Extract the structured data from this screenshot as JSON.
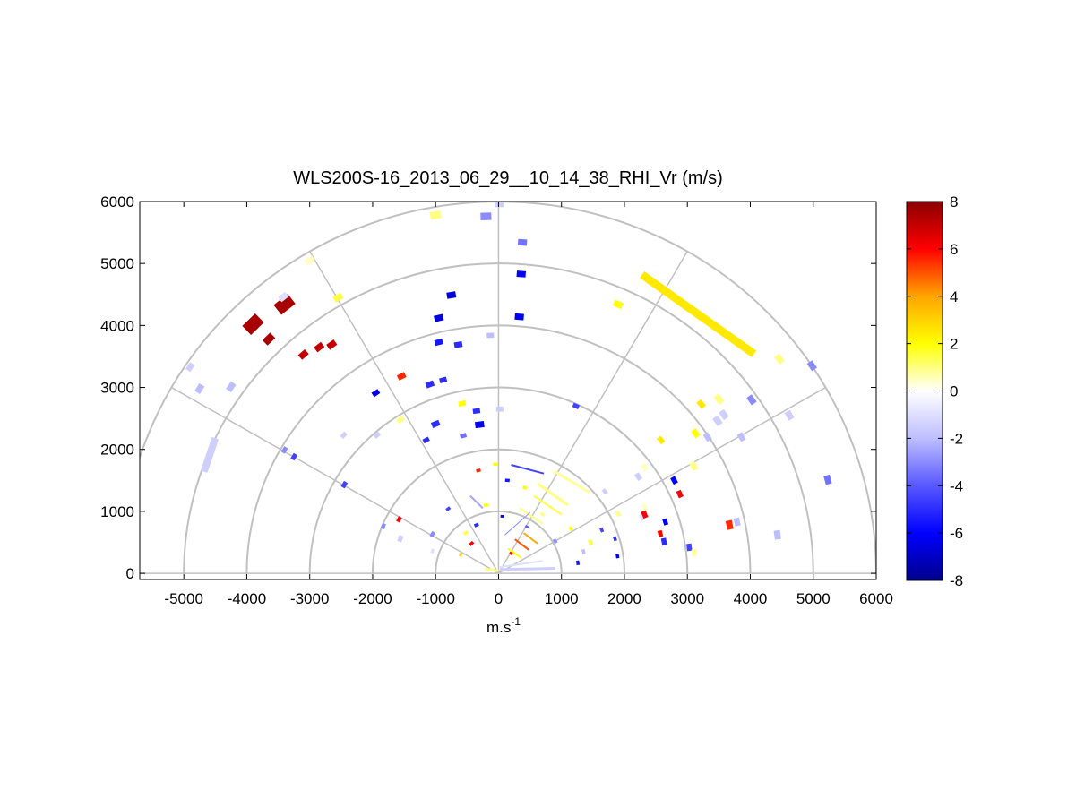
{
  "chart_data": {
    "type": "scatter",
    "title": "WLS200S-16_2013_06_29__10_14_38_RHI_Vr (m/s)",
    "xlabel_main": "m.s",
    "xlabel_superscript": "-1",
    "ylabel": "",
    "xlim": [
      -5700,
      6000
    ],
    "ylim": [
      -100,
      6000
    ],
    "xticks": [
      -5000,
      -4000,
      -3000,
      -2000,
      -1000,
      0,
      1000,
      2000,
      3000,
      4000,
      5000,
      6000
    ],
    "yticks": [
      0,
      1000,
      2000,
      3000,
      4000,
      5000,
      6000
    ],
    "polar_grid": {
      "range_rings": [
        1000,
        2000,
        3000,
        4000,
        5000,
        6000
      ],
      "spokes_deg": [
        0,
        30,
        60,
        90,
        120,
        150,
        180
      ]
    },
    "colorbar": {
      "label_ticks": [
        8,
        6,
        4,
        2,
        0,
        -2,
        -4,
        -6,
        -8
      ],
      "range": [
        -8,
        8
      ],
      "colormap_stops": [
        "#00008b",
        "#0000ff",
        "#5858ff",
        "#bebeff",
        "#ffffff",
        "#ffff00",
        "#ffa500",
        "#ff0000",
        "#8b0000"
      ]
    },
    "segments": [
      {
        "x1": 2280,
        "y1": 4820,
        "x2": 4060,
        "y2": 3540,
        "v": 2.5,
        "w": 9
      },
      {
        "x1": -4500,
        "y1": 2180,
        "x2": -4680,
        "y2": 1640,
        "v": -1.5,
        "w": 8
      },
      {
        "x1": 880,
        "y1": 1650,
        "x2": 1450,
        "y2": 1300,
        "v": 0.8,
        "w": 3
      },
      {
        "x1": 620,
        "y1": 1450,
        "x2": 1100,
        "y2": 1100,
        "v": 1.0,
        "w": 3
      },
      {
        "x1": 560,
        "y1": 1250,
        "x2": 1000,
        "y2": 950,
        "v": 1.5,
        "w": 2
      },
      {
        "x1": 340,
        "y1": 1050,
        "x2": 700,
        "y2": 800,
        "v": 1.0,
        "w": 2
      },
      {
        "x1": 400,
        "y1": 650,
        "x2": 620,
        "y2": 480,
        "v": 4.0,
        "w": 2
      },
      {
        "x1": 260,
        "y1": 550,
        "x2": 480,
        "y2": 380,
        "v": 5.0,
        "w": 2
      },
      {
        "x1": 150,
        "y1": 400,
        "x2": 360,
        "y2": 250,
        "v": 2.0,
        "w": 2
      },
      {
        "x1": 20,
        "y1": 60,
        "x2": 900,
        "y2": 80,
        "v": -1.5,
        "w": 3
      },
      {
        "x1": 20,
        "y1": 100,
        "x2": 700,
        "y2": 200,
        "v": -1.0,
        "w": 2
      },
      {
        "x1": 0,
        "y1": 40,
        "x2": -220,
        "y2": 70,
        "v": 1.0,
        "w": 3
      },
      {
        "x1": 200,
        "y1": 1750,
        "x2": 720,
        "y2": 1610,
        "v": -4.5,
        "w": 2
      },
      {
        "x1": -450,
        "y1": 1250,
        "x2": -250,
        "y2": 1050,
        "v": -2.5,
        "w": 2
      },
      {
        "x1": 500,
        "y1": 980,
        "x2": 100,
        "y2": 620,
        "v": -3.0,
        "w": 1
      }
    ],
    "points": [
      {
        "x": -3900,
        "y": 4020,
        "v": 7.5,
        "s": 20
      },
      {
        "x": -3400,
        "y": 4340,
        "v": 7.5,
        "s": 20
      },
      {
        "x": -3420,
        "y": 4460,
        "v": -1.0,
        "s": 10
      },
      {
        "x": -3650,
        "y": 3780,
        "v": 7.5,
        "s": 12
      },
      {
        "x": -3100,
        "y": 3530,
        "v": 7.0,
        "s": 10
      },
      {
        "x": -2850,
        "y": 3650,
        "v": 7.0,
        "s": 10
      },
      {
        "x": -2650,
        "y": 3690,
        "v": 7.0,
        "s": 10
      },
      {
        "x": -2550,
        "y": 4450,
        "v": 1.5,
        "s": 10
      },
      {
        "x": -3000,
        "y": 5050,
        "v": 0.5,
        "s": 10
      },
      {
        "x": -4900,
        "y": 3330,
        "v": -1.5,
        "s": 9
      },
      {
        "x": -4750,
        "y": 2980,
        "v": -2.0,
        "s": 10
      },
      {
        "x": -4250,
        "y": 3010,
        "v": -2.0,
        "s": 10
      },
      {
        "x": -3400,
        "y": 1990,
        "v": -3.0,
        "s": 7
      },
      {
        "x": -3250,
        "y": 1880,
        "v": -4.5,
        "s": 7
      },
      {
        "x": -2450,
        "y": 1430,
        "v": -4.5,
        "s": 7
      },
      {
        "x": -2460,
        "y": 2230,
        "v": -1.5,
        "s": 7
      },
      {
        "x": -1930,
        "y": 2230,
        "v": -1.5,
        "s": 7
      },
      {
        "x": -1950,
        "y": 2910,
        "v": -6.5,
        "s": 8
      },
      {
        "x": -1540,
        "y": 3180,
        "v": 5.5,
        "s": 9
      },
      {
        "x": -1560,
        "y": 2480,
        "v": 1.0,
        "s": 8
      },
      {
        "x": -1090,
        "y": 3050,
        "v": -5.0,
        "s": 9
      },
      {
        "x": -880,
        "y": 3120,
        "v": -5.0,
        "s": 8
      },
      {
        "x": -950,
        "y": 4120,
        "v": -6.5,
        "s": 10
      },
      {
        "x": -750,
        "y": 4490,
        "v": -6.5,
        "s": 10
      },
      {
        "x": -950,
        "y": 3730,
        "v": -5.5,
        "s": 9
      },
      {
        "x": -640,
        "y": 3690,
        "v": -5.0,
        "s": 9
      },
      {
        "x": -1000,
        "y": 5780,
        "v": 1.0,
        "s": 12
      },
      {
        "x": -200,
        "y": 5760,
        "v": -3.0,
        "s": 12
      },
      {
        "x": 10,
        "y": 5960,
        "v": -1.5,
        "s": 10
      },
      {
        "x": 380,
        "y": 5340,
        "v": -3.5,
        "s": 10
      },
      {
        "x": 360,
        "y": 4830,
        "v": -6.0,
        "s": 10
      },
      {
        "x": 330,
        "y": 4140,
        "v": -6.0,
        "s": 10
      },
      {
        "x": -130,
        "y": 3840,
        "v": -2.0,
        "s": 8
      },
      {
        "x": -1000,
        "y": 2410,
        "v": -5.0,
        "s": 9
      },
      {
        "x": -350,
        "y": 2620,
        "v": -5.0,
        "s": 8
      },
      {
        "x": -300,
        "y": 2400,
        "v": -6.0,
        "s": 10
      },
      {
        "x": -560,
        "y": 2220,
        "v": -3.5,
        "s": 7
      },
      {
        "x": -1150,
        "y": 2150,
        "v": -5.0,
        "s": 7
      },
      {
        "x": -580,
        "y": 2740,
        "v": 2.0,
        "s": 8
      },
      {
        "x": 20,
        "y": 2650,
        "v": -1.5,
        "s": 8
      },
      {
        "x": 1230,
        "y": 2700,
        "v": -4.5,
        "s": 7
      },
      {
        "x": 1900,
        "y": 4340,
        "v": 2.0,
        "s": 10
      },
      {
        "x": 3220,
        "y": 2730,
        "v": 2.5,
        "s": 9
      },
      {
        "x": 3500,
        "y": 2810,
        "v": 1.0,
        "s": 10
      },
      {
        "x": 3580,
        "y": 2560,
        "v": -1.5,
        "s": 10
      },
      {
        "x": 3480,
        "y": 2460,
        "v": -1.5,
        "s": 10
      },
      {
        "x": 3130,
        "y": 2260,
        "v": 2.0,
        "s": 9
      },
      {
        "x": 2580,
        "y": 2150,
        "v": 2.5,
        "s": 8
      },
      {
        "x": 3320,
        "y": 2200,
        "v": -2.0,
        "s": 9
      },
      {
        "x": 3860,
        "y": 2200,
        "v": -2.0,
        "s": 9
      },
      {
        "x": 4020,
        "y": 2800,
        "v": -3.0,
        "s": 10
      },
      {
        "x": 4460,
        "y": 3460,
        "v": 1.0,
        "s": 10
      },
      {
        "x": 4620,
        "y": 2550,
        "v": -1.5,
        "s": 10
      },
      {
        "x": 4980,
        "y": 3350,
        "v": -3.0,
        "s": 10
      },
      {
        "x": 5230,
        "y": 1510,
        "v": -3.5,
        "s": 10
      },
      {
        "x": 4430,
        "y": 620,
        "v": -2.0,
        "s": 10
      },
      {
        "x": 3790,
        "y": 830,
        "v": -2.0,
        "s": 9
      },
      {
        "x": 3670,
        "y": 780,
        "v": 5.5,
        "s": 10
      },
      {
        "x": 3100,
        "y": 1730,
        "v": 1.0,
        "s": 9
      },
      {
        "x": 2790,
        "y": 1500,
        "v": -6.0,
        "s": 8
      },
      {
        "x": 2880,
        "y": 1280,
        "v": 6.0,
        "s": 8
      },
      {
        "x": 2320,
        "y": 1710,
        "v": 0.5,
        "s": 8
      },
      {
        "x": 2220,
        "y": 1560,
        "v": -1.5,
        "s": 8
      },
      {
        "x": 2320,
        "y": 1070,
        "v": 0.5,
        "s": 7
      },
      {
        "x": 2280,
        "y": 900,
        "v": -1.0,
        "s": 7
      },
      {
        "x": 2320,
        "y": 950,
        "v": 6.0,
        "s": 8
      },
      {
        "x": 2650,
        "y": 830,
        "v": -6.0,
        "s": 7
      },
      {
        "x": 2570,
        "y": 640,
        "v": 6.0,
        "s": 7
      },
      {
        "x": 2630,
        "y": 510,
        "v": -5.0,
        "s": 8
      },
      {
        "x": 3030,
        "y": 420,
        "v": -4.5,
        "s": 8
      },
      {
        "x": 3110,
        "y": 330,
        "v": 0.7,
        "s": 8
      },
      {
        "x": 1690,
        "y": 1320,
        "v": -1.5,
        "s": 6
      },
      {
        "x": 1900,
        "y": 960,
        "v": 1.0,
        "s": 6
      },
      {
        "x": 1850,
        "y": 560,
        "v": -5.0,
        "s": 5
      },
      {
        "x": 1460,
        "y": 500,
        "v": 1.5,
        "s": 6
      },
      {
        "x": 1640,
        "y": 700,
        "v": -4.5,
        "s": 5
      },
      {
        "x": 1890,
        "y": 280,
        "v": -6.0,
        "s": 5
      },
      {
        "x": 1260,
        "y": 170,
        "v": -5.5,
        "s": 5
      },
      {
        "x": -1580,
        "y": 870,
        "v": 6.0,
        "s": 6
      },
      {
        "x": -1560,
        "y": 560,
        "v": -1.5,
        "s": 7
      },
      {
        "x": -1830,
        "y": 760,
        "v": -3.0,
        "s": 6
      },
      {
        "x": -1050,
        "y": 630,
        "v": -3.0,
        "s": 6
      },
      {
        "x": -520,
        "y": 650,
        "v": 1.5,
        "s": 5
      },
      {
        "x": -430,
        "y": 480,
        "v": 6.0,
        "s": 5
      },
      {
        "x": -350,
        "y": 780,
        "v": -5.0,
        "s": 5
      },
      {
        "x": -800,
        "y": 1040,
        "v": -4.5,
        "s": 5
      },
      {
        "x": -200,
        "y": 1100,
        "v": 2.0,
        "s": 5
      },
      {
        "x": 140,
        "y": 1500,
        "v": -5.5,
        "s": 5
      },
      {
        "x": 420,
        "y": 1380,
        "v": 2.0,
        "s": 5
      },
      {
        "x": -320,
        "y": 1660,
        "v": 5.5,
        "s": 5
      },
      {
        "x": -50,
        "y": 1760,
        "v": 2.0,
        "s": 5
      },
      {
        "x": 60,
        "y": 920,
        "v": -6.0,
        "s": 4
      },
      {
        "x": 200,
        "y": 320,
        "v": 6.0,
        "s": 4
      },
      {
        "x": 700,
        "y": 950,
        "v": 1.0,
        "s": 5
      },
      {
        "x": 900,
        "y": 520,
        "v": -3.0,
        "s": 5
      },
      {
        "x": 1150,
        "y": 720,
        "v": 2.0,
        "s": 5
      },
      {
        "x": 1350,
        "y": 350,
        "v": -2.0,
        "s": 5
      },
      {
        "x": -1050,
        "y": 360,
        "v": -1.0,
        "s": 5
      },
      {
        "x": 450,
        "y": 750,
        "v": -4.0,
        "s": 4
      },
      {
        "x": -600,
        "y": 300,
        "v": 3.0,
        "s": 4
      }
    ]
  }
}
